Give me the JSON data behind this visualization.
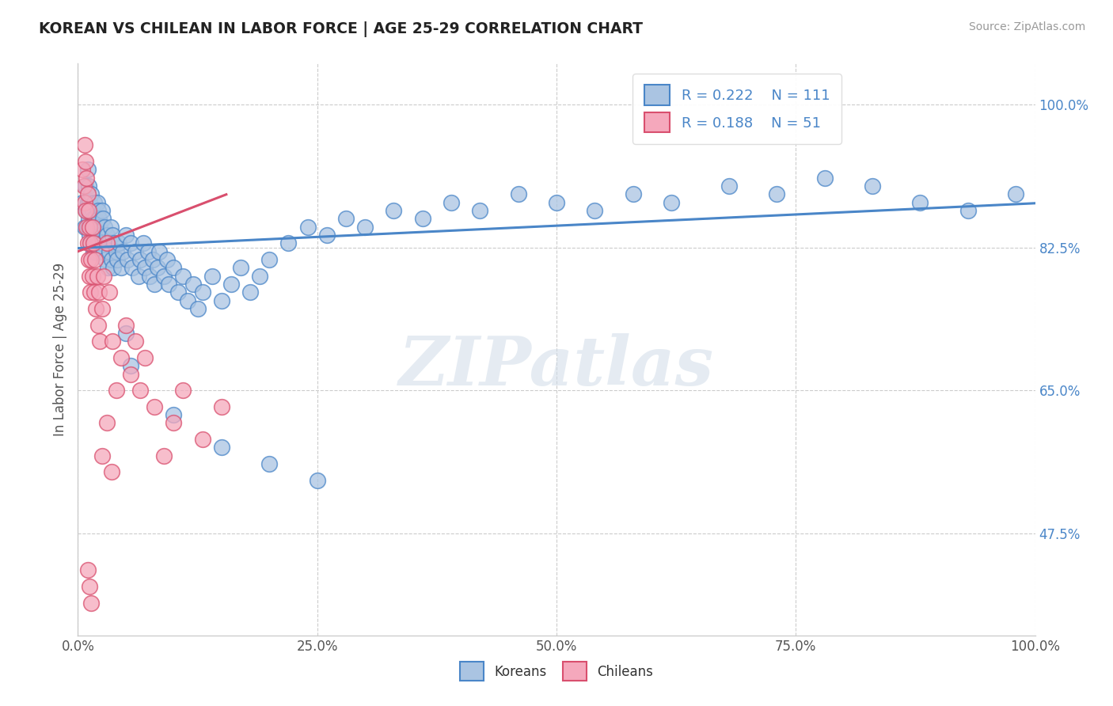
{
  "title": "KOREAN VS CHILEAN IN LABOR FORCE | AGE 25-29 CORRELATION CHART",
  "source_text": "Source: ZipAtlas.com",
  "ylabel": "In Labor Force | Age 25-29",
  "xlim": [
    0.0,
    1.0
  ],
  "ylim": [
    0.35,
    1.05
  ],
  "yticks": [
    0.475,
    0.65,
    0.825,
    1.0
  ],
  "ytick_labels": [
    "47.5%",
    "65.0%",
    "82.5%",
    "100.0%"
  ],
  "xtick_labels": [
    "0.0%",
    "25.0%",
    "50.0%",
    "75.0%",
    "100.0%"
  ],
  "xticks": [
    0.0,
    0.25,
    0.5,
    0.75,
    1.0
  ],
  "legend_R_korean": "R = 0.222",
  "legend_N_korean": "N = 111",
  "legend_R_chilean": "R = 0.188",
  "legend_N_chilean": "N = 51",
  "korean_color": "#aac4e2",
  "chilean_color": "#f5a8bc",
  "korean_line_color": "#4a86c8",
  "chilean_line_color": "#d94f6e",
  "legend_text_color": "#4a86c8",
  "title_color": "#222222",
  "source_color": "#999999",
  "axis_label_color": "#555555",
  "right_tick_color": "#4a86c8",
  "background_color": "#ffffff",
  "watermark": "ZIPatlas",
  "korean_x": [
    0.005,
    0.007,
    0.008,
    0.009,
    0.01,
    0.01,
    0.01,
    0.011,
    0.011,
    0.012,
    0.012,
    0.013,
    0.013,
    0.014,
    0.014,
    0.015,
    0.015,
    0.016,
    0.016,
    0.017,
    0.017,
    0.018,
    0.018,
    0.019,
    0.02,
    0.02,
    0.021,
    0.021,
    0.022,
    0.022,
    0.023,
    0.024,
    0.025,
    0.025,
    0.026,
    0.027,
    0.028,
    0.029,
    0.03,
    0.031,
    0.032,
    0.033,
    0.034,
    0.035,
    0.036,
    0.037,
    0.038,
    0.04,
    0.041,
    0.043,
    0.045,
    0.047,
    0.05,
    0.052,
    0.055,
    0.057,
    0.06,
    0.063,
    0.065,
    0.068,
    0.07,
    0.073,
    0.075,
    0.078,
    0.08,
    0.083,
    0.085,
    0.09,
    0.093,
    0.095,
    0.1,
    0.105,
    0.11,
    0.115,
    0.12,
    0.125,
    0.13,
    0.14,
    0.15,
    0.16,
    0.17,
    0.18,
    0.19,
    0.2,
    0.22,
    0.24,
    0.26,
    0.28,
    0.3,
    0.33,
    0.36,
    0.39,
    0.42,
    0.46,
    0.5,
    0.54,
    0.58,
    0.62,
    0.68,
    0.73,
    0.78,
    0.83,
    0.88,
    0.93,
    0.98,
    0.05,
    0.055,
    0.1,
    0.15,
    0.2,
    0.25
  ],
  "korean_y": [
    0.88,
    0.85,
    0.9,
    0.87,
    0.92,
    0.88,
    0.85,
    0.9,
    0.86,
    0.88,
    0.84,
    0.87,
    0.83,
    0.89,
    0.85,
    0.87,
    0.83,
    0.86,
    0.82,
    0.88,
    0.84,
    0.86,
    0.82,
    0.85,
    0.88,
    0.84,
    0.87,
    0.83,
    0.86,
    0.82,
    0.85,
    0.84,
    0.87,
    0.83,
    0.86,
    0.82,
    0.85,
    0.81,
    0.84,
    0.8,
    0.83,
    0.82,
    0.85,
    0.81,
    0.84,
    0.8,
    0.83,
    0.82,
    0.81,
    0.83,
    0.8,
    0.82,
    0.84,
    0.81,
    0.83,
    0.8,
    0.82,
    0.79,
    0.81,
    0.83,
    0.8,
    0.82,
    0.79,
    0.81,
    0.78,
    0.8,
    0.82,
    0.79,
    0.81,
    0.78,
    0.8,
    0.77,
    0.79,
    0.76,
    0.78,
    0.75,
    0.77,
    0.79,
    0.76,
    0.78,
    0.8,
    0.77,
    0.79,
    0.81,
    0.83,
    0.85,
    0.84,
    0.86,
    0.85,
    0.87,
    0.86,
    0.88,
    0.87,
    0.89,
    0.88,
    0.87,
    0.89,
    0.88,
    0.9,
    0.89,
    0.91,
    0.9,
    0.88,
    0.87,
    0.89,
    0.72,
    0.68,
    0.62,
    0.58,
    0.56,
    0.54
  ],
  "chilean_x": [
    0.005,
    0.006,
    0.007,
    0.007,
    0.008,
    0.008,
    0.009,
    0.009,
    0.01,
    0.01,
    0.011,
    0.011,
    0.012,
    0.012,
    0.013,
    0.013,
    0.014,
    0.015,
    0.015,
    0.016,
    0.017,
    0.018,
    0.019,
    0.02,
    0.021,
    0.022,
    0.023,
    0.025,
    0.027,
    0.03,
    0.033,
    0.036,
    0.04,
    0.045,
    0.05,
    0.055,
    0.06,
    0.065,
    0.07,
    0.08,
    0.09,
    0.1,
    0.11,
    0.13,
    0.15,
    0.025,
    0.03,
    0.035,
    0.01,
    0.012,
    0.014
  ],
  "chilean_y": [
    0.92,
    0.9,
    0.95,
    0.88,
    0.93,
    0.87,
    0.91,
    0.85,
    0.89,
    0.83,
    0.87,
    0.81,
    0.85,
    0.79,
    0.83,
    0.77,
    0.81,
    0.85,
    0.79,
    0.83,
    0.77,
    0.81,
    0.75,
    0.79,
    0.73,
    0.77,
    0.71,
    0.75,
    0.79,
    0.83,
    0.77,
    0.71,
    0.65,
    0.69,
    0.73,
    0.67,
    0.71,
    0.65,
    0.69,
    0.63,
    0.57,
    0.61,
    0.65,
    0.59,
    0.63,
    0.57,
    0.61,
    0.55,
    0.43,
    0.41,
    0.39
  ]
}
